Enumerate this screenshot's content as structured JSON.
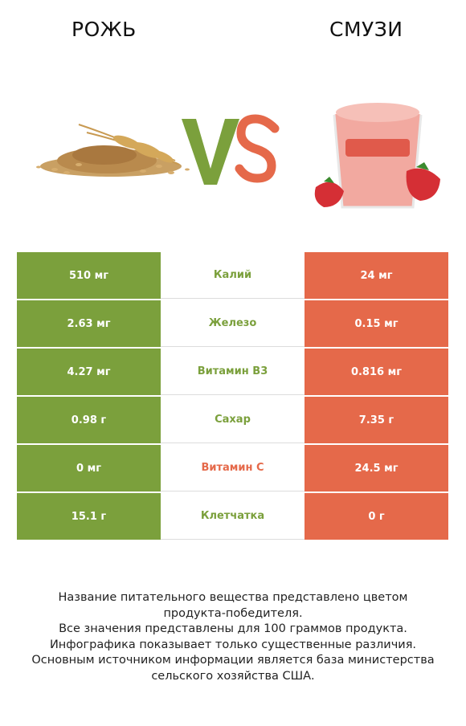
{
  "header": {
    "left_title": "РОЖЬ",
    "right_title": "СМУЗИ"
  },
  "colors": {
    "left": "#7ba03c",
    "right": "#e5694a"
  },
  "rows": [
    {
      "left": "510 мг",
      "name": "Калий",
      "right": "24 мг",
      "winner": "left"
    },
    {
      "left": "2.63 мг",
      "name": "Железо",
      "right": "0.15 мг",
      "winner": "left"
    },
    {
      "left": "4.27 мг",
      "name": "Витамин B3",
      "right": "0.816 мг",
      "winner": "left"
    },
    {
      "left": "0.98 г",
      "name": "Сахар",
      "right": "7.35 г",
      "winner": "left"
    },
    {
      "left": "0 мг",
      "name": "Витамин C",
      "right": "24.5 мг",
      "winner": "right"
    },
    {
      "left": "15.1 г",
      "name": "Клетчатка",
      "right": "0 г",
      "winner": "left"
    }
  ],
  "footer": {
    "line1": "Название питательного вещества представлено цветом",
    "line2": "продукта-победителя.",
    "line3": "Все значения представлены для 100 граммов продукта.",
    "line4": "Инфографика показывает только существенные различия.",
    "line5": "Основным источником информации является база министерства",
    "line6": "сельского хозяйства США."
  }
}
